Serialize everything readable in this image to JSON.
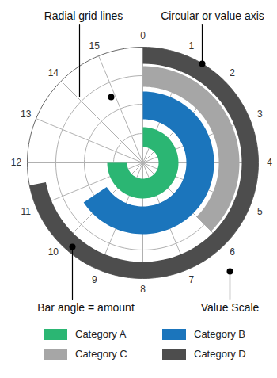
{
  "chart_data": {
    "type": "radial_bar",
    "categories": [
      "Category A",
      "Category B",
      "Category C",
      "Category D"
    ],
    "values": [
      12,
      10.5,
      6,
      11.5
    ],
    "colors": [
      "#2bb673",
      "#1b75bc",
      "#a6a6a6",
      "#4d4d4d"
    ],
    "xlim": [
      0,
      16
    ],
    "xticks": [
      0,
      1,
      2,
      3,
      4,
      5,
      6,
      7,
      8,
      9,
      10,
      11,
      12,
      13,
      14,
      15
    ],
    "grid": true,
    "legend": "bottom",
    "annotations": [
      "Radial grid lines",
      "Circular or value axis",
      "Bar angle = amount",
      "Value Scale"
    ]
  }
}
